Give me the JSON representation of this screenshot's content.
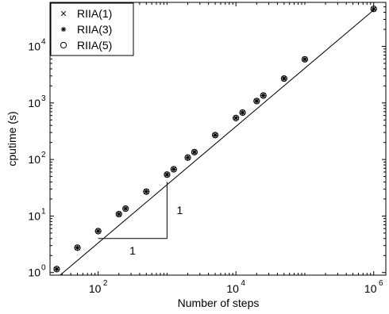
{
  "chart_data": {
    "type": "scatter",
    "x_scale": "log",
    "y_scale": "log",
    "xlabel": "Number of steps",
    "ylabel": "cputime (s)",
    "xlim": [
      20,
      1500000
    ],
    "ylim": [
      0.9,
      60000
    ],
    "x_ticks": [
      {
        "value": 100,
        "base": "10",
        "exp": "2"
      },
      {
        "value": 10000,
        "base": "10",
        "exp": "4"
      },
      {
        "value": 1000000,
        "base": "10",
        "exp": "6"
      }
    ],
    "y_ticks": [
      {
        "value": 1,
        "base": "10",
        "exp": "0"
      },
      {
        "value": 10,
        "base": "10",
        "exp": "1"
      },
      {
        "value": 100,
        "base": "10",
        "exp": "2"
      },
      {
        "value": 1000,
        "base": "10",
        "exp": "3"
      },
      {
        "value": 10000,
        "base": "10",
        "exp": "4"
      }
    ],
    "legend": {
      "placement": "top-left",
      "entries": [
        {
          "label": "RIIA(1)",
          "marker": "x"
        },
        {
          "label": "RIIA(3)",
          "marker": "star"
        },
        {
          "label": "RIIA(5)",
          "marker": "circle"
        }
      ]
    },
    "series": [
      {
        "name": "RIIA(1)",
        "marker": "x",
        "x": [
          25,
          50,
          100,
          200,
          250,
          500,
          1000,
          1250,
          2000,
          2500,
          5000,
          10000,
          12500,
          20000,
          25000,
          50000,
          100000,
          1000000
        ],
        "y": [
          1.15,
          2.75,
          5.4,
          10.8,
          13.5,
          27,
          54,
          67,
          108,
          135,
          270,
          540,
          675,
          1080,
          1350,
          2700,
          5900,
          46000
        ]
      },
      {
        "name": "RIIA(3)",
        "marker": "star",
        "x": [
          25,
          50,
          100,
          200,
          250,
          500,
          1000,
          1250,
          2000,
          2500,
          5000,
          10000,
          12500,
          20000,
          25000,
          50000,
          100000,
          1000000
        ],
        "y": [
          1.15,
          2.75,
          5.4,
          10.8,
          13.5,
          27,
          54,
          67,
          108,
          135,
          270,
          540,
          675,
          1080,
          1350,
          2700,
          5900,
          46000
        ]
      },
      {
        "name": "RIIA(5)",
        "marker": "circle",
        "x": [
          25,
          50,
          100,
          200,
          250,
          500,
          1000,
          1250,
          2000,
          2500,
          5000,
          10000,
          12500,
          20000,
          25000,
          50000,
          100000,
          1000000
        ],
        "y": [
          1.15,
          2.75,
          5.4,
          10.8,
          13.5,
          27,
          54,
          67,
          108,
          135,
          270,
          540,
          675,
          1080,
          1350,
          2700,
          5900,
          46000
        ]
      }
    ],
    "reference_line": {
      "x": [
        28,
        1000000
      ],
      "y": [
        0.9,
        44000
      ],
      "slope": 1
    },
    "slope_triangle": {
      "x": [
        100,
        1000
      ],
      "y": [
        4,
        40
      ],
      "run_label": "1",
      "rise_label": "1"
    }
  }
}
